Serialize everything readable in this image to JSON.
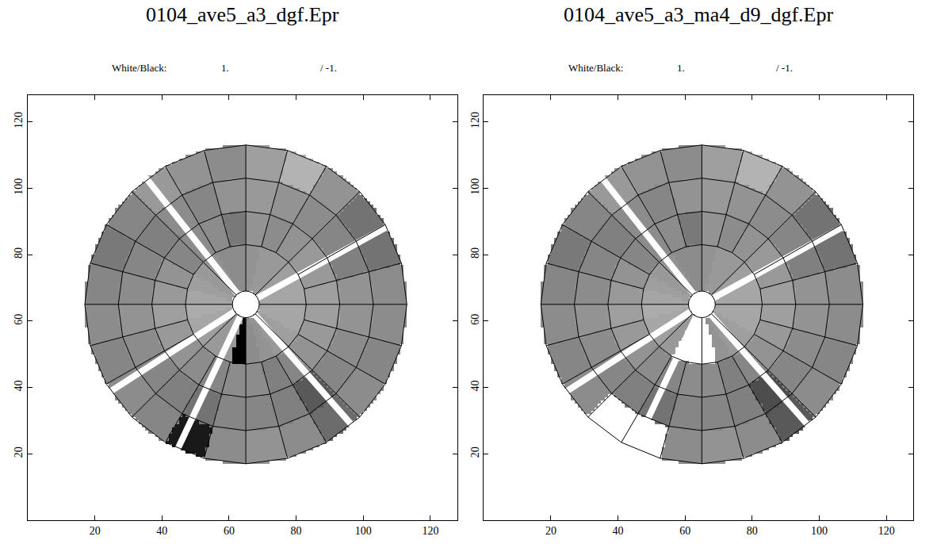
{
  "chart_data": [
    {
      "type": "heatmap",
      "title": "0104_ave5_a3_dgf.Epr",
      "color_scale": {
        "label": "White/Black:",
        "white": {
          "value": 1,
          "label": "1."
        },
        "black": {
          "value": -1,
          "label": "/ -1."
        }
      },
      "xlim": [
        0,
        128
      ],
      "ylim": [
        0,
        128
      ],
      "xticks": [
        20,
        40,
        60,
        80,
        100,
        120
      ],
      "yticks": [
        20,
        40,
        60,
        80,
        100,
        120
      ],
      "cells": {
        "center": [
          65,
          65
        ],
        "ring_edges": [
          4,
          18,
          28,
          38,
          48
        ],
        "values": [
          [
            0.3,
            0.3,
            0.25,
            0.2,
            0.2,
            0.15,
            0.1,
            0.1,
            0.15,
            0.2,
            0.25,
            0.3,
            0.35,
            0.3,
            0.25,
            0.2,
            0.2,
            -1,
            0.1,
            0.15,
            0.2,
            0.25,
            0.3,
            0.3
          ],
          [
            0.25,
            0.2,
            0.2,
            0.15,
            0.1,
            0.15,
            -0.05,
            0.1,
            0.1,
            0.05,
            0.15,
            0.2,
            0.25,
            0.2,
            0.15,
            0.1,
            0.05,
            0.1,
            0.1,
            0.0,
            0.05,
            0.15,
            0.2,
            0.25
          ],
          [
            0.15,
            0.0,
            0.05,
            0.1,
            0.15,
            0.2,
            0.15,
            0.05,
            0.1,
            0.0,
            0.05,
            0.1,
            0.15,
            0.1,
            0.05,
            0.0,
            -0.1,
            0.05,
            0.05,
            0.0,
            -0.3,
            0.05,
            0.1,
            0.15
          ],
          [
            0.1,
            -0.1,
            -0.1,
            0.15,
            0.4,
            0.25,
            0.1,
            0.15,
            0.2,
            0.05,
            -0.05,
            0.05,
            0.1,
            0.05,
            0.1,
            0.05,
            -0.8,
            0.1,
            0.15,
            0.1,
            -0.15,
            0.1,
            0.05,
            0.1
          ]
        ]
      },
      "gap_angles": [
        29,
        128,
        213,
        245,
        311
      ]
    },
    {
      "type": "heatmap",
      "title": "0104_ave5_a3_ma4_d9_dgf.Epr",
      "color_scale": {
        "label": "White/Black:",
        "white": {
          "value": 1,
          "label": "1."
        },
        "black": {
          "value": -1,
          "label": "/ -1."
        }
      },
      "xlim": [
        0,
        128
      ],
      "ylim": [
        0,
        128
      ],
      "xticks": [
        20,
        40,
        60,
        80,
        100,
        120
      ],
      "yticks": [
        20,
        40,
        60,
        80,
        100,
        120
      ],
      "cells": {
        "center": [
          65,
          65
        ],
        "ring_edges": [
          4,
          18,
          28,
          38,
          48
        ],
        "values": [
          [
            0.3,
            0.3,
            0.25,
            0.2,
            0.2,
            0.15,
            0.1,
            0.1,
            0.15,
            0.2,
            0.25,
            0.3,
            0.35,
            0.3,
            0.25,
            0.2,
            null,
            null,
            null,
            0.15,
            0.2,
            0.25,
            0.3,
            0.3
          ],
          [
            0.25,
            0.2,
            0.2,
            0.15,
            0.1,
            0.15,
            -0.05,
            0.1,
            0.1,
            0.05,
            0.15,
            0.2,
            0.25,
            0.2,
            0.15,
            0.1,
            0.05,
            0.1,
            0.1,
            0.0,
            0.05,
            0.15,
            0.2,
            0.25
          ],
          [
            0.15,
            0.0,
            0.05,
            0.1,
            0.15,
            0.2,
            0.15,
            0.05,
            0.1,
            0.0,
            0.05,
            0.1,
            0.15,
            0.1,
            0.05,
            0.0,
            -0.1,
            0.05,
            0.05,
            0.0,
            -0.4,
            0.05,
            0.1,
            0.15
          ],
          [
            0.1,
            -0.1,
            -0.1,
            0.15,
            0.4,
            0.25,
            0.1,
            0.15,
            0.2,
            0.05,
            -0.05,
            0.05,
            0.1,
            0.05,
            0.1,
            null,
            null,
            0.1,
            0.15,
            0.1,
            -0.3,
            0.1,
            0.05,
            0.1
          ]
        ]
      },
      "gap_angles": [
        29,
        128,
        213,
        245,
        311
      ]
    }
  ]
}
